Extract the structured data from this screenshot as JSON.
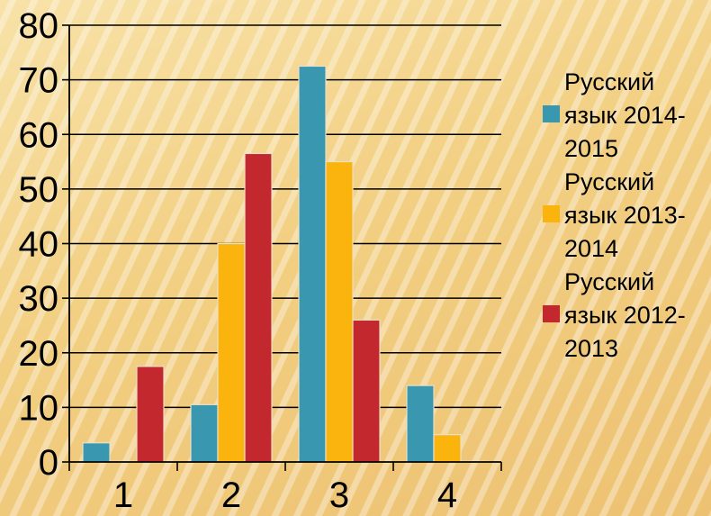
{
  "chart_data": {
    "type": "bar",
    "categories": [
      "1",
      "2",
      "3",
      "4"
    ],
    "series": [
      {
        "name": "Русский язык 2014-2015",
        "color": "#3a97b0",
        "values": [
          3.5,
          10.5,
          72.5,
          14
        ]
      },
      {
        "name": "Русский язык 2013-2014",
        "color": "#fbb40d",
        "values": [
          0,
          40,
          55,
          5
        ]
      },
      {
        "name": "Русский язык 2012-2013",
        "color": "#c3282f",
        "values": [
          17.5,
          56.5,
          26,
          0
        ]
      }
    ],
    "yticks": [
      "0",
      "10",
      "20",
      "30",
      "40",
      "50",
      "60",
      "70",
      "80"
    ],
    "ylim": [
      0,
      80
    ],
    "grid": true,
    "legend_position": "right",
    "legend_lines": [
      [
        "Русский",
        "язык 2014-",
        "2015"
      ],
      [
        "Русский",
        "язык 2013-",
        "2014"
      ],
      [
        "Русский",
        "язык 2012-",
        "2013"
      ]
    ]
  }
}
